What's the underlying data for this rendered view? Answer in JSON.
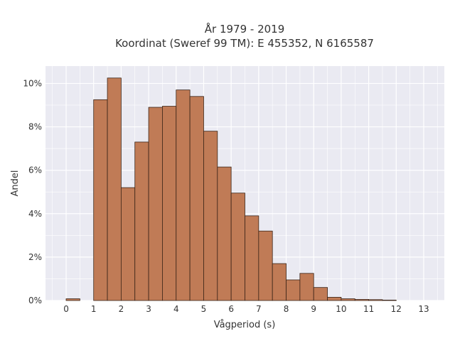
{
  "chart_data": {
    "type": "bar",
    "title_lines": [
      "År 1979 - 2019",
      "Koordinat (Sweref 99 TM): E 455352, N 6165587"
    ],
    "xlabel": "Vågperiod (s)",
    "ylabel": "Andel",
    "x_ticks": [
      "0",
      "1",
      "2",
      "3",
      "4",
      "5",
      "6",
      "7",
      "8",
      "9",
      "10",
      "11",
      "12",
      "13"
    ],
    "y_ticks": [
      "0%",
      "2%",
      "4%",
      "6%",
      "8%",
      "10%"
    ],
    "xlim": [
      -0.75,
      13.75
    ],
    "ylim": [
      0,
      10.8
    ],
    "bin_width": 0.5,
    "bin_starts": [
      0,
      0.5,
      1,
      1.5,
      2,
      2.5,
      3,
      3.5,
      4,
      4.5,
      5,
      5.5,
      6,
      6.5,
      7,
      7.5,
      8,
      8.5,
      9,
      9.5,
      10,
      10.5,
      11,
      11.5,
      12,
      12.5,
      13
    ],
    "values": [
      0.08,
      0,
      9.25,
      10.25,
      5.2,
      7.3,
      8.9,
      8.95,
      9.7,
      9.4,
      7.8,
      6.15,
      4.95,
      3.9,
      3.2,
      1.7,
      0.95,
      1.25,
      0.6,
      0.15,
      0.08,
      0.05,
      0.04,
      0.02,
      0,
      0,
      0
    ],
    "bar_color": "#c07b56",
    "bar_edge_color": "#3a2418",
    "grid": true,
    "grid_color": "#ffffff",
    "plot_background": "#eaeaf2"
  }
}
